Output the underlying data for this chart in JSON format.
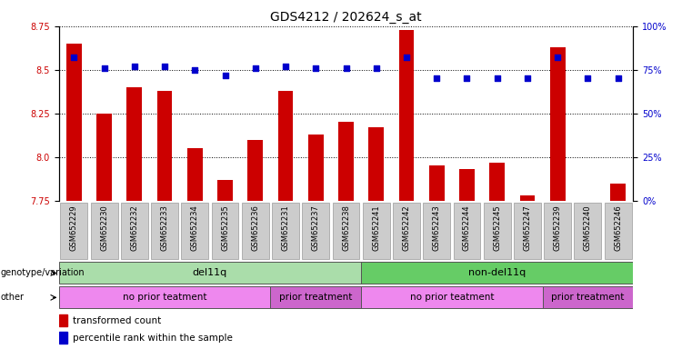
{
  "title": "GDS4212 / 202624_s_at",
  "samples": [
    "GSM652229",
    "GSM652230",
    "GSM652232",
    "GSM652233",
    "GSM652234",
    "GSM652235",
    "GSM652236",
    "GSM652231",
    "GSM652237",
    "GSM652238",
    "GSM652241",
    "GSM652242",
    "GSM652243",
    "GSM652244",
    "GSM652245",
    "GSM652247",
    "GSM652239",
    "GSM652240",
    "GSM652246"
  ],
  "red_values": [
    8.65,
    8.25,
    8.4,
    8.38,
    8.05,
    7.87,
    8.1,
    8.38,
    8.13,
    8.2,
    8.17,
    8.73,
    7.95,
    7.93,
    7.97,
    7.78,
    8.63,
    7.73,
    7.85
  ],
  "blue_values": [
    82,
    76,
    77,
    77,
    75,
    72,
    76,
    77,
    76,
    76,
    76,
    82,
    70,
    70,
    70,
    70,
    82,
    70,
    70
  ],
  "ylim_left": [
    7.75,
    8.75
  ],
  "ylim_right": [
    0,
    100
  ],
  "yticks_left": [
    7.75,
    8.0,
    8.25,
    8.5,
    8.75
  ],
  "yticks_right": [
    0,
    25,
    50,
    75,
    100
  ],
  "ytick_labels_right": [
    "0%",
    "25%",
    "50%",
    "75%",
    "100%"
  ],
  "genotype_groups": [
    {
      "label": "del11q",
      "start": 0,
      "end": 10,
      "color": "#aaddaa"
    },
    {
      "label": "non-del11q",
      "start": 10,
      "end": 19,
      "color": "#66cc66"
    }
  ],
  "other_groups": [
    {
      "label": "no prior teatment",
      "start": 0,
      "end": 7,
      "color": "#ee88ee"
    },
    {
      "label": "prior treatment",
      "start": 7,
      "end": 10,
      "color": "#cc66cc"
    },
    {
      "label": "no prior teatment",
      "start": 10,
      "end": 16,
      "color": "#ee88ee"
    },
    {
      "label": "prior treatment",
      "start": 16,
      "end": 19,
      "color": "#cc66cc"
    }
  ],
  "legend_items": [
    {
      "label": "transformed count",
      "color": "#cc0000"
    },
    {
      "label": "percentile rank within the sample",
      "color": "#0000cc"
    }
  ],
  "bar_color": "#cc0000",
  "dot_color": "#0000cc",
  "bar_bottom": 7.75,
  "title_fontsize": 10,
  "tick_fontsize": 7,
  "label_fontsize": 8
}
